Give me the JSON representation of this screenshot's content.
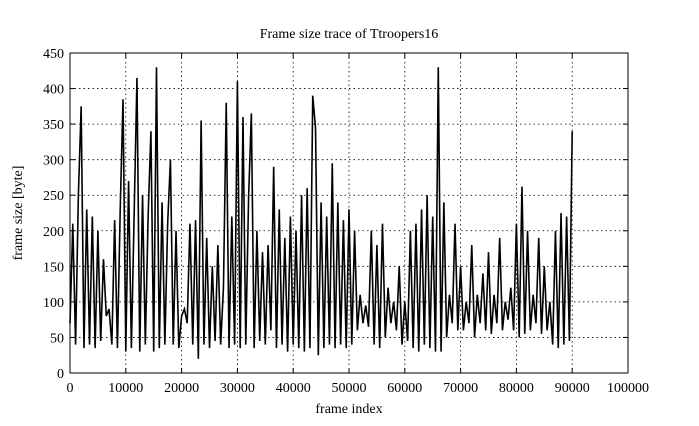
{
  "chart_data": {
    "type": "line",
    "title": "Frame size trace of Ttroopers16",
    "xlabel": "frame index",
    "ylabel": "frame size [byte]",
    "xlim": [
      0,
      100000
    ],
    "xticks": [
      0,
      10000,
      20000,
      30000,
      40000,
      50000,
      60000,
      70000,
      80000,
      90000,
      100000
    ],
    "ylim": [
      0,
      450
    ],
    "yticks": [
      0,
      50,
      100,
      150,
      200,
      250,
      300,
      350,
      400,
      450
    ],
    "grid": true,
    "x": [
      0,
      500,
      1000,
      1500,
      2000,
      2500,
      3000,
      3500,
      4000,
      4500,
      5000,
      5500,
      6000,
      6500,
      7000,
      7500,
      8000,
      8500,
      9000,
      9500,
      10000,
      10500,
      11000,
      11500,
      12000,
      12500,
      13000,
      13500,
      14000,
      14500,
      15000,
      15500,
      16000,
      16500,
      17000,
      17500,
      18000,
      18500,
      19000,
      19500,
      20000,
      20500,
      21000,
      21500,
      22000,
      22500,
      23000,
      23500,
      24000,
      24500,
      25000,
      25500,
      26000,
      26500,
      27000,
      27500,
      28000,
      28500,
      29000,
      29500,
      30000,
      30500,
      31000,
      31500,
      32000,
      32500,
      33000,
      33500,
      34000,
      34500,
      35000,
      35500,
      36000,
      36500,
      37000,
      37500,
      38000,
      38500,
      39000,
      39500,
      40000,
      40500,
      41000,
      41500,
      42000,
      42500,
      43000,
      43500,
      44000,
      44500,
      45000,
      45500,
      46000,
      46500,
      47000,
      47500,
      48000,
      48500,
      49000,
      49500,
      50000,
      50500,
      51000,
      51500,
      52000,
      52500,
      53000,
      53500,
      54000,
      54500,
      55000,
      55500,
      56000,
      56500,
      57000,
      57500,
      58000,
      58500,
      59000,
      59500,
      60000,
      60500,
      61000,
      61500,
      62000,
      62500,
      63000,
      63500,
      64000,
      64500,
      65000,
      65500,
      66000,
      66500,
      67000,
      67500,
      68000,
      68500,
      69000,
      69500,
      70000,
      70500,
      71000,
      71500,
      72000,
      72500,
      73000,
      73500,
      74000,
      74500,
      75000,
      75500,
      76000,
      76500,
      77000,
      77500,
      78000,
      78500,
      79000,
      79500,
      80000,
      80500,
      81000,
      81500,
      82000,
      82500,
      83000,
      83500,
      84000,
      84500,
      85000,
      85500,
      86000,
      86500,
      87000,
      87500,
      88000,
      88500,
      89000,
      89500,
      90000
    ],
    "series": [
      {
        "color": "#000000",
        "values": [
          70,
          210,
          40,
          250,
          375,
          35,
          230,
          40,
          220,
          35,
          200,
          45,
          160,
          80,
          90,
          40,
          215,
          35,
          230,
          385,
          30,
          270,
          35,
          225,
          415,
          30,
          250,
          40,
          220,
          340,
          30,
          430,
          35,
          240,
          40,
          210,
          300,
          40,
          200,
          35,
          80,
          90,
          70,
          210,
          40,
          215,
          20,
          355,
          40,
          190,
          35,
          150,
          45,
          180,
          40,
          120,
          380,
          35,
          220,
          40,
          410,
          35,
          360,
          40,
          245,
          365,
          35,
          200,
          45,
          170,
          40,
          180,
          60,
          290,
          35,
          230,
          40,
          190,
          30,
          220,
          40,
          200,
          35,
          250,
          30,
          260,
          35,
          390,
          345,
          25,
          240,
          35,
          220,
          40,
          295,
          35,
          240,
          40,
          215,
          35,
          230,
          40,
          200,
          60,
          110,
          70,
          95,
          65,
          200,
          40,
          180,
          35,
          210,
          50,
          120,
          70,
          100,
          60,
          150,
          40,
          100,
          45,
          200,
          35,
          210,
          30,
          230,
          40,
          250,
          35,
          220,
          30,
          430,
          30,
          240,
          50,
          110,
          70,
          210,
          60,
          150,
          60,
          100,
          70,
          180,
          50,
          110,
          70,
          140,
          60,
          170,
          55,
          110,
          70,
          190,
          60,
          100,
          75,
          120,
          60,
          210,
          50,
          262,
          55,
          200,
          60,
          110,
          70,
          190,
          55,
          150,
          60,
          100,
          40,
          200,
          35,
          225,
          40,
          220,
          45,
          340
        ]
      }
    ]
  }
}
